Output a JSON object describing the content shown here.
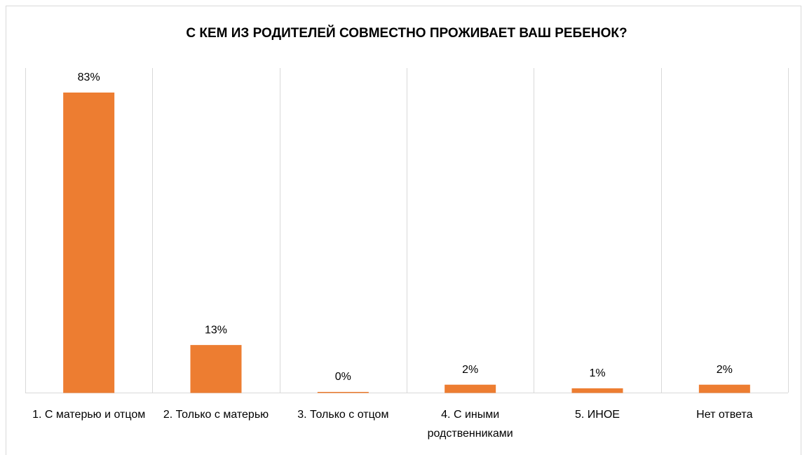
{
  "chart_data": {
    "type": "bar",
    "title": "С КЕМ ИЗ РОДИТЕЛЕЙ СОВМЕСТНО ПРОЖИВАЕТ ВАШ РЕБЕНОК?",
    "categories": [
      "1. С матерью и отцом",
      "2. Только с матерью",
      "3. Только с отцом",
      "4. С иными родственниками",
      "5. ИНОЕ",
      "Нет ответа"
    ],
    "values": [
      83,
      13,
      0,
      2,
      1,
      2
    ],
    "value_labels": [
      "83%",
      "13%",
      "0%",
      "2%",
      "1%",
      "2%"
    ],
    "color": "#ed7d31",
    "ylim": [
      0,
      90
    ],
    "grid": true
  }
}
